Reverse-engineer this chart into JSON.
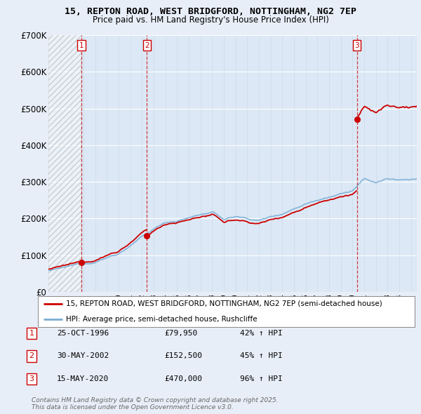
{
  "title": "15, REPTON ROAD, WEST BRIDGFORD, NOTTINGHAM, NG2 7EP",
  "subtitle": "Price paid vs. HM Land Registry's House Price Index (HPI)",
  "ylim": [
    0,
    700000
  ],
  "yticks": [
    0,
    100000,
    200000,
    300000,
    400000,
    500000,
    600000,
    700000
  ],
  "ytick_labels": [
    "£0",
    "£100K",
    "£200K",
    "£300K",
    "£400K",
    "£500K",
    "£600K",
    "£700K"
  ],
  "background_color": "#e8eef8",
  "plot_bg_color": "#dce8f5",
  "legend_label_red": "15, REPTON ROAD, WEST BRIDGFORD, NOTTINGHAM, NG2 7EP (semi-detached house)",
  "legend_label_blue": "HPI: Average price, semi-detached house, Rushcliffe",
  "transactions": [
    {
      "num": 1,
      "date": "25-OCT-1996",
      "price": 79950,
      "pct": "42%",
      "dir": "↑",
      "x": 1996.82
    },
    {
      "num": 2,
      "date": "30-MAY-2002",
      "price": 152500,
      "pct": "45%",
      "dir": "↑",
      "x": 2002.42
    },
    {
      "num": 3,
      "date": "15-MAY-2020",
      "price": 470000,
      "pct": "96%",
      "dir": "↑",
      "x": 2020.37
    }
  ],
  "footer": "Contains HM Land Registry data © Crown copyright and database right 2025.\nThis data is licensed under the Open Government Licence v3.0.",
  "red_color": "#cc0000",
  "blue_color": "#7aaed4",
  "hatch_color": "#aaaaaa"
}
